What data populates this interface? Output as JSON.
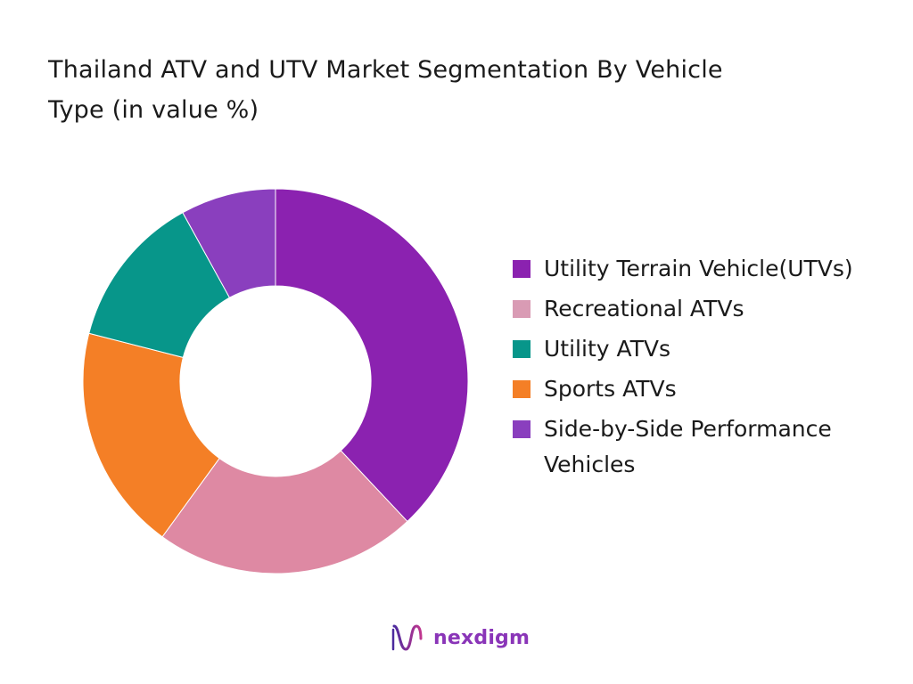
{
  "chart_data": {
    "type": "pie",
    "title": "Thailand ATV and UTV Market Segmentation By Vehicle Type (in value %)",
    "categories": [
      "Utility Terrain Vehicle(UTVs)",
      "Recreational ATVs",
      "Utility ATVs",
      "Sports ATVs",
      "Side-by-Side Performance Vehicles"
    ],
    "values": [
      38,
      22,
      13,
      19,
      8
    ],
    "slice_order": [
      0,
      1,
      3,
      2,
      4
    ],
    "colors": [
      "#8b22b0",
      "#de89a3",
      "#07968a",
      "#f47f26",
      "#8a3fbe"
    ],
    "legend_colors": [
      "#8b22b0",
      "#d99bb4",
      "#07968a",
      "#f47f26",
      "#8a3fbe"
    ],
    "donut": true,
    "legend": "right"
  },
  "branding": {
    "logo_text": "nexdigm",
    "logo_icon": "nexdigm-wave-icon"
  }
}
